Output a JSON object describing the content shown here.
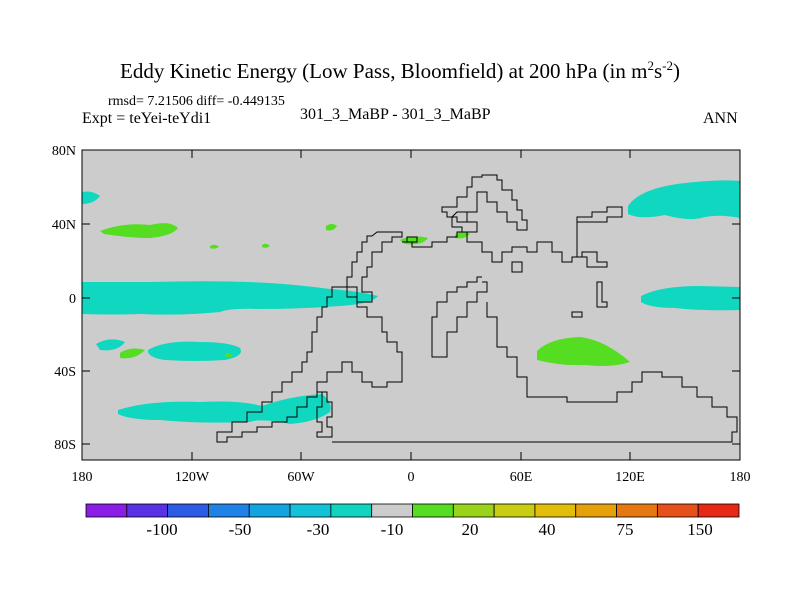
{
  "title": "Eddy Kinetic Energy (Low Pass, Bloomfield) at 200 hPa (in m",
  "title_units": {
    "sup1": "2",
    "s": "s",
    "sup2": "-2",
    "close": ")"
  },
  "stats": "rmsd= 7.21506 diff= -0.449135",
  "left_label": "Expt = teYei-teYdi1",
  "center_label": "301_3_MaBP - 301_3_MaBP",
  "right_label": "ANN",
  "y_ticks": [
    "80N",
    "40N",
    "0",
    "40S",
    "80S"
  ],
  "x_ticks": [
    "180",
    "120W",
    "60W",
    "0",
    "60E",
    "120E",
    "180"
  ],
  "colorbar": {
    "colors": [
      "#8a1ee6",
      "#5a32e6",
      "#2b5ce6",
      "#1e82e6",
      "#12a4e0",
      "#12c2d8",
      "#10d4c0",
      "#cccccc",
      "#55dd22",
      "#99d31a",
      "#c8cc12",
      "#e2bd0a",
      "#e6a00a",
      "#e67812",
      "#e6501a",
      "#e62814"
    ],
    "labels": [
      "-100",
      "-50",
      "-30",
      "-10",
      "20",
      "40",
      "75",
      "150"
    ]
  },
  "colors": {
    "background": "#cccccc",
    "positive": "#55dd22",
    "negative": "#10d8c0",
    "coast": "#000000"
  }
}
